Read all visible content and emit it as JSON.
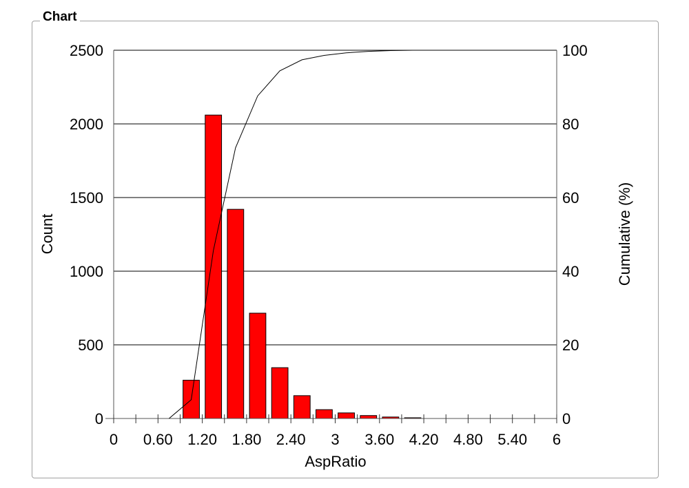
{
  "group_title": "Chart",
  "chart_data": {
    "type": "bar",
    "title": "",
    "xlabel": "AspRatio",
    "ylabel": "Count",
    "y2label": "Cumulative (%)",
    "xlim": [
      0,
      6
    ],
    "ylim": [
      0,
      2500
    ],
    "y2lim": [
      0,
      100
    ],
    "x_ticks": [
      "0",
      "0.60",
      "1.20",
      "1.80",
      "2.40",
      "3",
      "3.60",
      "4.20",
      "4.80",
      "5.40",
      "6"
    ],
    "y_ticks": [
      "0",
      "500",
      "1000",
      "1500",
      "2000",
      "2500"
    ],
    "y2_ticks": [
      "0",
      "20",
      "40",
      "60",
      "80",
      "100"
    ],
    "grid": true,
    "bin_width": 0.3,
    "bins": [
      {
        "start": 0.9,
        "end": 1.2,
        "count": 260
      },
      {
        "start": 1.2,
        "end": 1.5,
        "count": 2060
      },
      {
        "start": 1.5,
        "end": 1.8,
        "count": 1420
      },
      {
        "start": 1.8,
        "end": 2.1,
        "count": 715
      },
      {
        "start": 2.1,
        "end": 2.4,
        "count": 345
      },
      {
        "start": 2.4,
        "end": 2.7,
        "count": 155
      },
      {
        "start": 2.7,
        "end": 3.0,
        "count": 60
      },
      {
        "start": 3.0,
        "end": 3.3,
        "count": 38
      },
      {
        "start": 3.3,
        "end": 3.6,
        "count": 20
      },
      {
        "start": 3.6,
        "end": 3.9,
        "count": 10
      },
      {
        "start": 3.9,
        "end": 4.2,
        "count": 5
      }
    ],
    "cumulative": {
      "x": [
        0.75,
        1.05,
        1.35,
        1.65,
        1.95,
        2.25,
        2.55,
        2.85,
        3.15,
        3.45,
        3.75,
        4.05,
        4.35,
        4.65,
        4.95,
        5.25,
        5.55
      ],
      "y": [
        0,
        5.1,
        45.6,
        73.5,
        87.6,
        94.4,
        97.4,
        98.6,
        99.3,
        99.7,
        99.9,
        100,
        100,
        100,
        100,
        100,
        100
      ]
    },
    "colors": {
      "bar": "#ff0000",
      "bar_edge": "#000000",
      "line": "#000000",
      "grid": "#000000"
    }
  }
}
